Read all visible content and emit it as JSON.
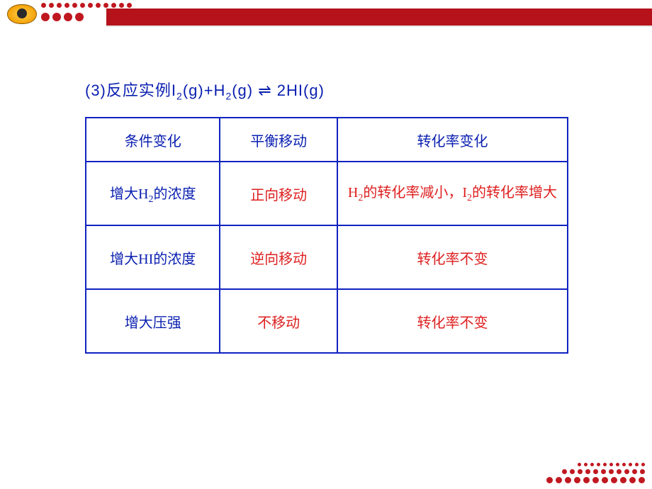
{
  "top_decor": {
    "small_dot_color": "#c01820",
    "small_dot_diameter": 7,
    "small_dot_count": 12,
    "big_dot_color": "#c01820",
    "big_dot_diameter": 12,
    "big_dot_count": 4,
    "bar_color": "#b5121b"
  },
  "title": {
    "prefix": "(3)反应实例I",
    "sub1": "2",
    "mid1": "(g)+H",
    "sub2": "2",
    "mid2": "(g)",
    "arrow_glyph": " ⇌ ",
    "tail": " 2HI(g)"
  },
  "table": {
    "headers": [
      "条件变化",
      "平衡移动",
      "转化率变化"
    ],
    "rows": [
      {
        "cond_parts": {
          "pre": "增大H",
          "sub": "2",
          "post": "的浓度"
        },
        "shift": "正向移动",
        "rate_parts": {
          "pre": "H",
          "sub1": "2",
          "mid": "的转化率减小，I",
          "sub2": "2",
          "post": "的转化率增大"
        },
        "rate_align": "left"
      },
      {
        "cond_plain": "增大HI的浓度",
        "shift": "逆向移动",
        "rate_plain": "转化率不变",
        "rate_align": "center"
      },
      {
        "cond_plain": "增大压强",
        "shift": "不移动",
        "rate_plain": "转化率不变",
        "rate_align": "center"
      }
    ],
    "border_color": "#1022c0",
    "header_text_color": "#0a1fb0",
    "cond_text_color": "#0a1fb0",
    "value_text_color": "#de1f1f"
  },
  "bottom_decor": {
    "rows": [
      {
        "count": 11,
        "diameter": 5,
        "color": "#c01820"
      },
      {
        "count": 11,
        "diameter": 7,
        "color": "#c01820"
      },
      {
        "count": 11,
        "diameter": 9,
        "color": "#c01820"
      }
    ]
  }
}
